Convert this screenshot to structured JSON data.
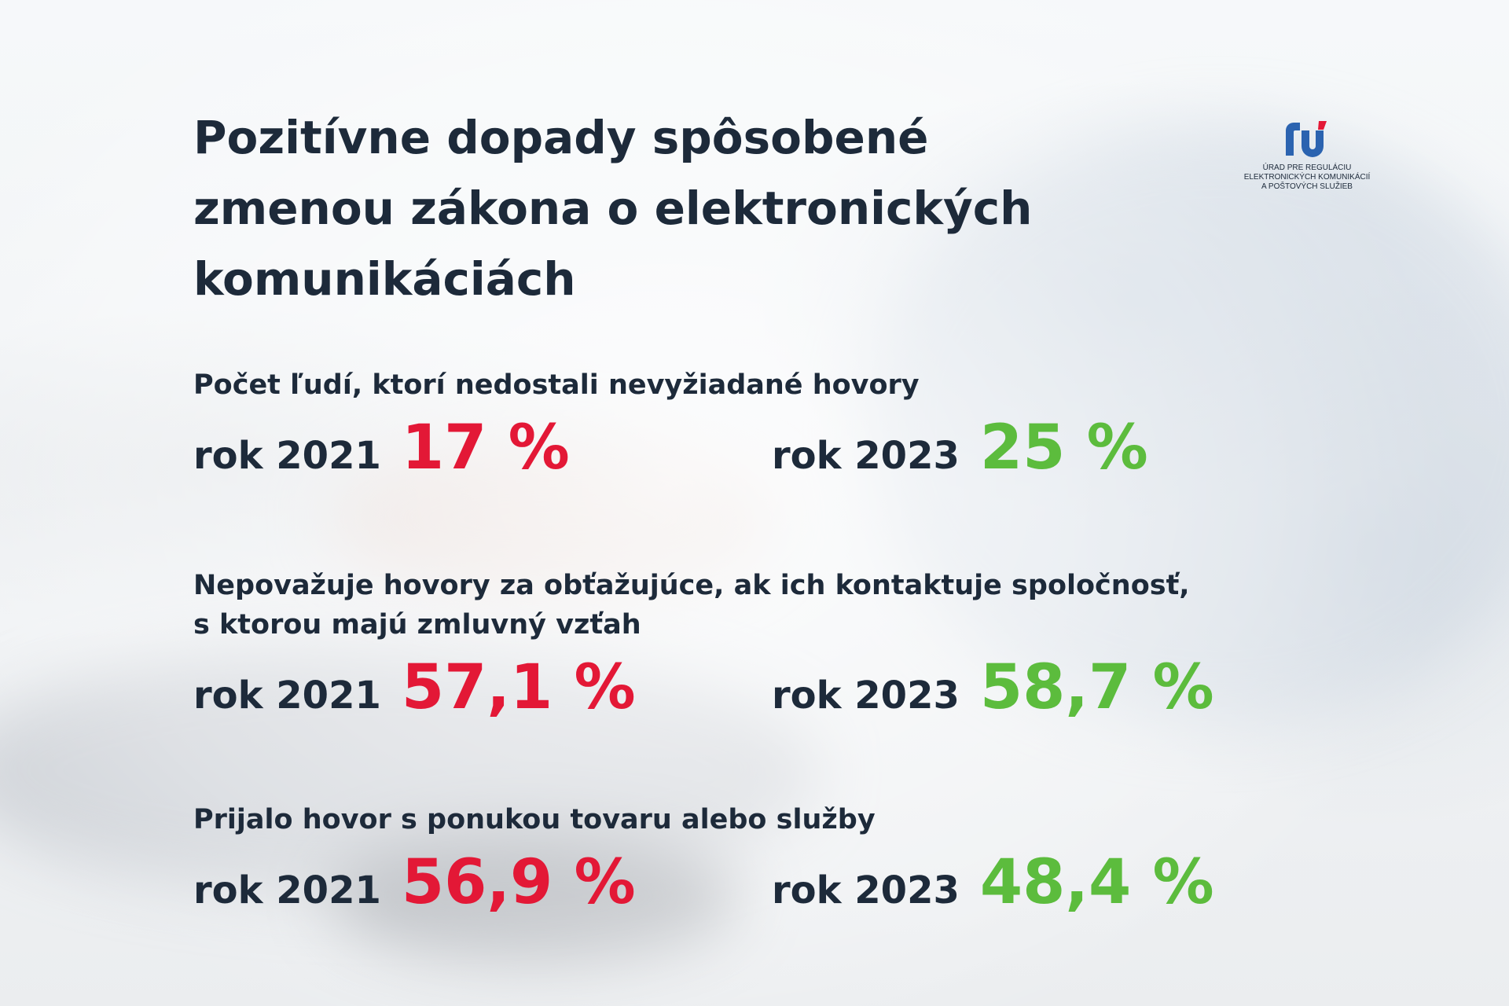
{
  "title": "Pozitívne dopady spôsobené zmenou zákona o elektronických komunikáciách",
  "logo": {
    "icon": "ru-logo-icon",
    "text": "ÚRAD PRE REGULÁCIU\nELEKTRONICKÝCH KOMUNIKÁCIÍ\nA POŠTOVÝCH SLUŽIEB"
  },
  "colors": {
    "text": "#1d2a3a",
    "value_2021": "#e31836",
    "value_2023": "#5cbc3d",
    "logo_blue": "#2b63b0",
    "logo_red": "#e31836"
  },
  "sections": [
    {
      "heading": "Počet ľudí, ktorí nedostali nevyžiadané hovory",
      "left": {
        "year_label": "rok 2021",
        "value": "17 %"
      },
      "right": {
        "year_label": "rok 2023",
        "value": "25 %"
      }
    },
    {
      "heading_line1": "Nepovažuje hovory za obťažujúce, ak ich kontaktuje spoločnosť,",
      "heading_line2": "s ktorou majú zmluvný vzťah",
      "left": {
        "year_label": "rok 2021",
        "value": "57,1 %"
      },
      "right": {
        "year_label": "rok 2023",
        "value": "58,7 %"
      }
    },
    {
      "heading": "Prijalo hovor s ponukou tovaru alebo služby",
      "left": {
        "year_label": "rok 2021",
        "value": "56,9 %"
      },
      "right": {
        "year_label": "rok 2023",
        "value": "48,4 %"
      }
    }
  ]
}
